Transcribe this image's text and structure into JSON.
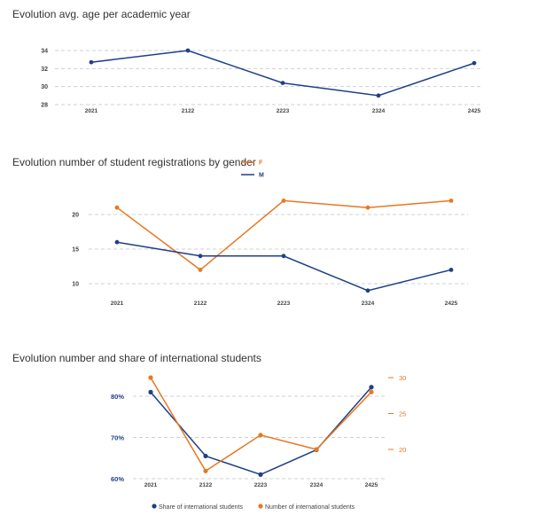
{
  "chart_data": [
    {
      "type": "line",
      "title": "Evolution avg. age per academic year",
      "categories": [
        "2021",
        "2122",
        "2223",
        "2324",
        "2425"
      ],
      "series": [
        {
          "name": "Avg. age",
          "values": [
            32.7,
            34.0,
            30.4,
            29.0,
            32.6
          ],
          "color": "#1f3f88"
        }
      ],
      "ylim": [
        28,
        34
      ],
      "yticks": [
        28,
        30,
        32,
        34
      ],
      "grid": true
    },
    {
      "type": "line",
      "title": "Evolution number of student registrations by gender",
      "categories": [
        "2021",
        "2122",
        "2223",
        "2324",
        "2425"
      ],
      "series": [
        {
          "name": "F",
          "values": [
            21,
            12,
            22,
            21,
            22
          ],
          "color": "#e87722"
        },
        {
          "name": "M",
          "values": [
            16,
            14,
            14,
            9,
            12
          ],
          "color": "#1f3f88"
        }
      ],
      "ylim": [
        10,
        20
      ],
      "yticks": [
        10,
        15,
        20
      ],
      "legend": "top-right",
      "grid": true
    },
    {
      "type": "line",
      "title": "Evolution number and share of international students",
      "categories": [
        "2021",
        "2122",
        "2223",
        "2324",
        "2425"
      ],
      "series": [
        {
          "name": "Share of international students",
          "axis": "left",
          "values": [
            81,
            65.5,
            61,
            67,
            82.2
          ],
          "color": "#1f3f88"
        },
        {
          "name": "Number of international students",
          "axis": "right",
          "values": [
            30,
            17,
            22,
            20,
            28
          ],
          "color": "#e87722"
        }
      ],
      "ylim_left": [
        60,
        80
      ],
      "yticks_left": [
        60,
        70,
        80
      ],
      "ytick_suffix_left": "%",
      "ylim_right": [
        20,
        30
      ],
      "yticks_right": [
        20,
        25,
        30
      ],
      "legend": "bottom",
      "grid": true
    }
  ]
}
